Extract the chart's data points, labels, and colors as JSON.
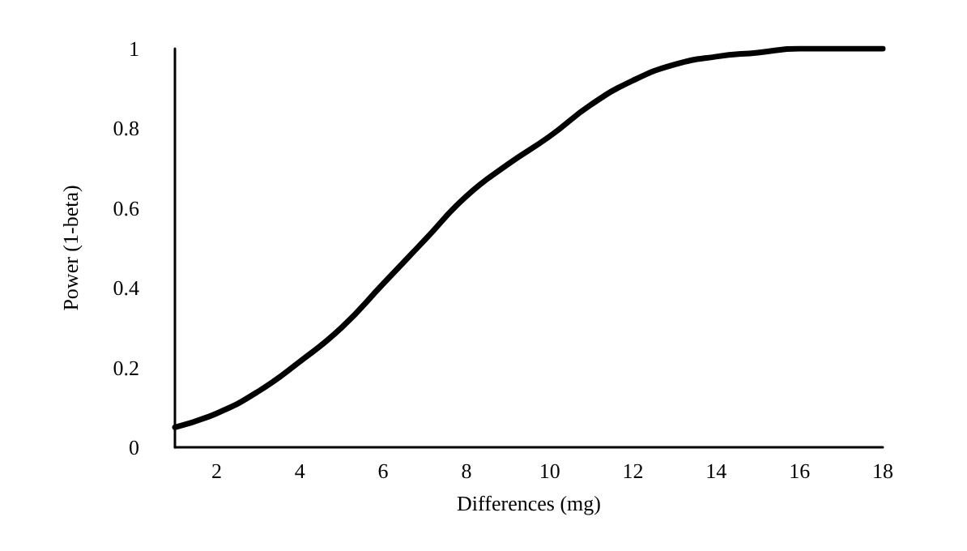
{
  "chart_data": {
    "type": "line",
    "xlabel": "Differences (mg)",
    "ylabel": "Power (1-beta)",
    "x": [
      1,
      2,
      3,
      4,
      5,
      6,
      7,
      8,
      9,
      10,
      11,
      12,
      13,
      14,
      15,
      16,
      17,
      18
    ],
    "series": [
      {
        "color": "#000000",
        "values": [
          0.05,
          0.085,
          0.14,
          0.215,
          0.3,
          0.41,
          0.52,
          0.63,
          0.71,
          0.78,
          0.86,
          0.92,
          0.96,
          0.98,
          0.99,
          1.0,
          1.0,
          1.0
        ]
      }
    ],
    "xlim": [
      1,
      18
    ],
    "xticks": [
      2,
      4,
      6,
      8,
      10,
      12,
      14,
      16,
      18
    ],
    "ylim": [
      0,
      1
    ],
    "yticks": [
      0,
      0.2,
      0.4,
      0.6,
      0.8,
      1
    ],
    "grid": false,
    "marker": "none",
    "line_style": "solid"
  }
}
